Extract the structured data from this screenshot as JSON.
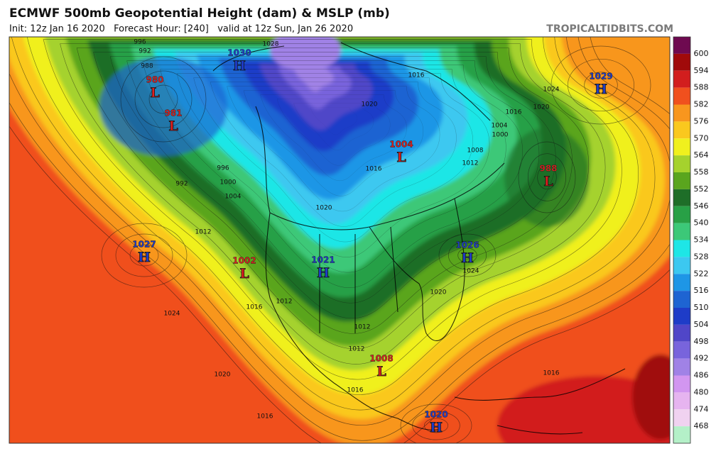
{
  "header": {
    "title": "ECMWF 500mb Geopotential Height (dam) & MSLP (mb)",
    "subtitle": "Init: 12z Jan 16 2020   Forecast Hour: [240]   valid at 12z Sun, Jan 26 2020",
    "source": "TROPICALTIDBITS.COM"
  },
  "colorbar": {
    "labels": [
      600,
      594,
      588,
      582,
      576,
      570,
      564,
      558,
      552,
      546,
      540,
      534,
      528,
      522,
      516,
      510,
      504,
      498,
      492,
      486,
      480,
      474,
      468
    ],
    "colors": [
      "#6e0a50",
      "#a00a0a",
      "#d21e1e",
      "#f0501e",
      "#f8961e",
      "#fac81e",
      "#f0f01e",
      "#a5d22d",
      "#5aa51e",
      "#1e6e28",
      "#28a046",
      "#3cc878",
      "#1ee6e6",
      "#3cc8f0",
      "#1e96e6",
      "#1e64d2",
      "#1e3cc8",
      "#5046c8",
      "#7864dc",
      "#a082e6",
      "#d296f0",
      "#e6b4f0",
      "#f0d2f0",
      "#b4f0c8"
    ]
  },
  "centers": [
    {
      "letter": "L",
      "pressure": 980
    },
    {
      "letter": "L",
      "pressure": 981
    },
    {
      "letter": "H",
      "pressure": 1030
    },
    {
      "letter": "H",
      "pressure": 1029
    },
    {
      "letter": "L",
      "pressure": 1004
    },
    {
      "letter": "L",
      "pressure": 988
    },
    {
      "letter": "H",
      "pressure": 1027
    },
    {
      "letter": "L",
      "pressure": 1002
    },
    {
      "letter": "H",
      "pressure": 1021
    },
    {
      "letter": "H",
      "pressure": 1026
    },
    {
      "letter": "L",
      "pressure": 1008
    },
    {
      "letter": "H",
      "pressure": 1020
    }
  ],
  "isobar_labels": [
    996,
    992,
    988,
    1028,
    1024,
    1020,
    1016,
    1004,
    1000,
    1008,
    1012,
    992,
    996,
    1000,
    1004,
    1012,
    1016,
    1012,
    1024,
    1020,
    1016,
    1012,
    1012,
    1016,
    1020,
    1016,
    1024,
    1020,
    1016,
    1020,
    1016
  ]
}
